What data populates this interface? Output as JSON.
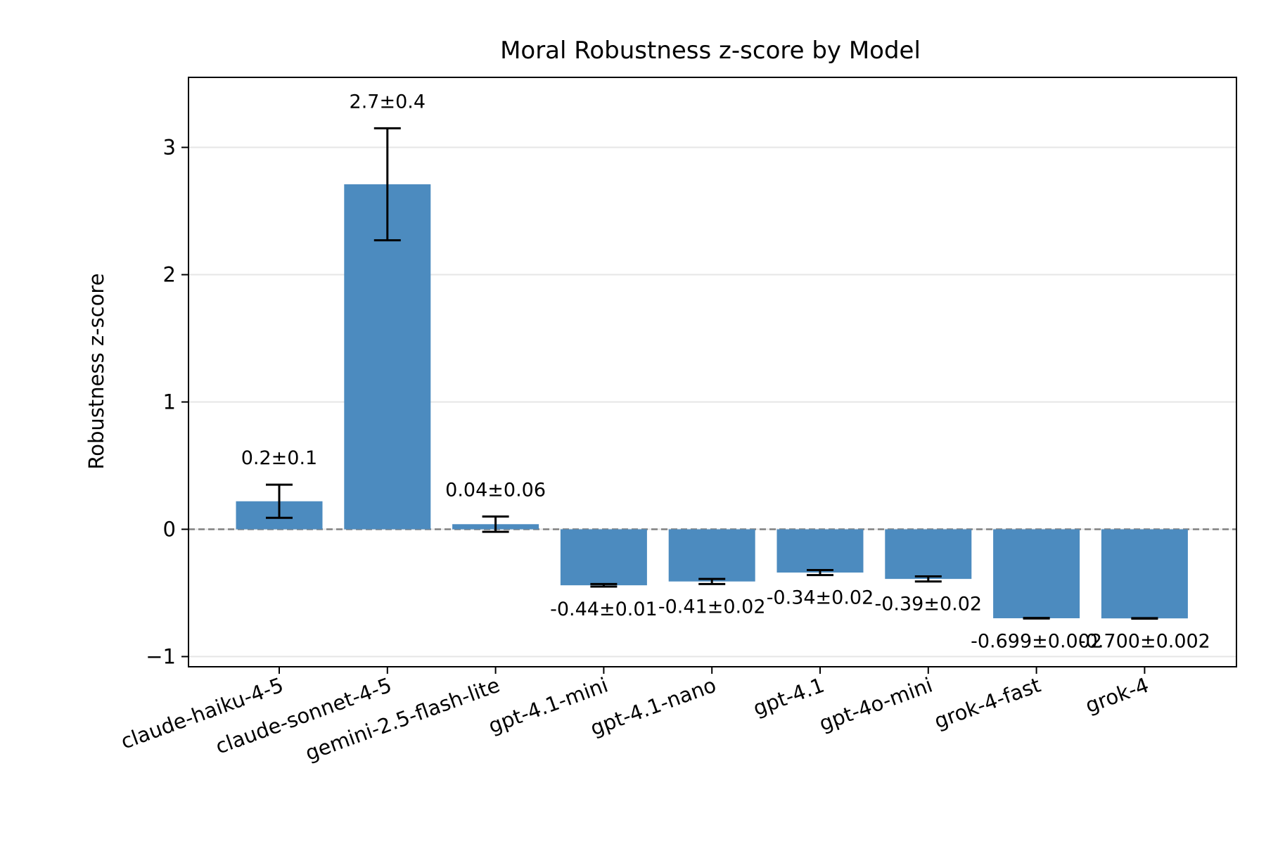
{
  "chart_data": {
    "type": "bar",
    "title": "Moral Robustness z-score by Model",
    "xlabel": "",
    "ylabel": "Robustness z-score",
    "ylim": [
      -1.08,
      3.55
    ],
    "yticks": [
      3,
      2,
      1,
      0,
      -1
    ],
    "ytick_labels": [
      "3",
      "2",
      "1",
      "0",
      "−1"
    ],
    "categories": [
      "claude-haiku-4-5",
      "claude-sonnet-4-5",
      "gemini-2.5-flash-lite",
      "gpt-4.1-mini",
      "gpt-4.1-nano",
      "gpt-4.1",
      "gpt-4o-mini",
      "grok-4-fast",
      "grok-4"
    ],
    "values": [
      0.22,
      2.71,
      0.04,
      -0.44,
      -0.41,
      -0.34,
      -0.39,
      -0.699,
      -0.7
    ],
    "errors": [
      0.13,
      0.44,
      0.06,
      0.01,
      0.02,
      0.02,
      0.02,
      0.002,
      0.002
    ],
    "value_labels": [
      "0.2±0.1",
      "2.7±0.4",
      "0.04±0.06",
      "-0.44±0.01",
      "-0.41±0.02",
      "-0.34±0.02",
      "-0.39±0.02",
      "-0.699±0.002",
      "-0.700±0.002"
    ],
    "grid": "horizontal",
    "zero_line": "dashed",
    "colors": {
      "bar": "#4c8bbf",
      "errorbar": "#000000",
      "grid": "#e6e6e6",
      "zero_line": "#808080"
    }
  }
}
